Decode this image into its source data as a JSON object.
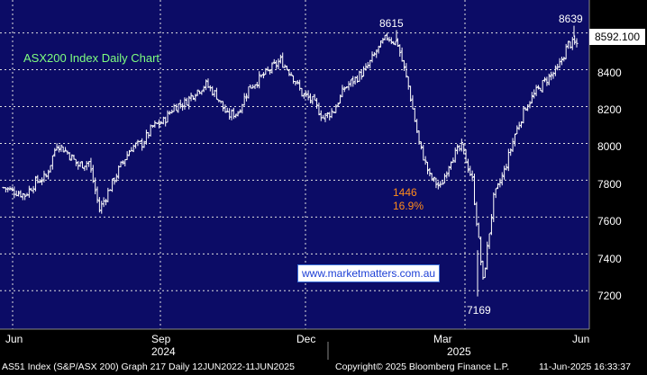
{
  "colors": {
    "plot_background": "#0c0c66",
    "grid": "#e0e0e0",
    "candles": "#ffffff",
    "title_green": "#7fff7f",
    "annotation_orange": "#ff8c1a",
    "url_blue": "#1c3fd6"
  },
  "chart_data": {
    "type": "candlestick",
    "title": "ASX200 Index Daily Chart",
    "ylim": [
      7050,
      8720
    ],
    "y_ticks": [
      "7200",
      "7400",
      "7600",
      "7800",
      "8000",
      "8200",
      "8400"
    ],
    "x_tick_labels": [
      "Jun",
      "Sep",
      "Dec",
      "Mar",
      "Jun"
    ],
    "x_year_labels": [
      "2024",
      "2025"
    ],
    "grid": true,
    "last_price": "8592.100",
    "annotations": {
      "high_1": "8615",
      "high_2": "8639",
      "low": "7169",
      "drop_points": "1446",
      "drop_pct": "16.9%"
    },
    "watermark_url": "www.marketmatters.com.au",
    "x": [
      "2024-06-03",
      "2024-06-10",
      "2024-06-17",
      "2024-06-24",
      "2024-07-01",
      "2024-07-08",
      "2024-07-15",
      "2024-07-22",
      "2024-07-29",
      "2024-08-05",
      "2024-08-12",
      "2024-08-19",
      "2024-08-26",
      "2024-09-02",
      "2024-09-09",
      "2024-09-16",
      "2024-09-23",
      "2024-09-30",
      "2024-10-07",
      "2024-10-14",
      "2024-10-21",
      "2024-10-28",
      "2024-11-04",
      "2024-11-11",
      "2024-11-18",
      "2024-11-25",
      "2024-12-02",
      "2024-12-09",
      "2024-12-16",
      "2024-12-23",
      "2024-12-30",
      "2025-01-06",
      "2025-01-13",
      "2025-01-20",
      "2025-01-27",
      "2025-02-03",
      "2025-02-10",
      "2025-02-17",
      "2025-02-24",
      "2025-03-03",
      "2025-03-10",
      "2025-03-17",
      "2025-03-24",
      "2025-03-31",
      "2025-04-07",
      "2025-04-14",
      "2025-04-21",
      "2025-04-28",
      "2025-05-05",
      "2025-05-12",
      "2025-05-19",
      "2025-05-26",
      "2025-06-02",
      "2025-06-09"
    ],
    "series": [
      {
        "values": [
          7760,
          7740,
          7720,
          7790,
          7820,
          8000,
          7950,
          7880,
          7900,
          7640,
          7760,
          7880,
          7980,
          8000,
          8090,
          8120,
          8200,
          8220,
          8280,
          8320,
          8260,
          8150,
          8170,
          8300,
          8350,
          8400,
          8450,
          8380,
          8270,
          8230,
          8140,
          8180,
          8300,
          8350,
          8400,
          8500,
          8580,
          8540,
          8310,
          8000,
          7820,
          7760,
          7920,
          7980,
          7800,
          7250,
          7700,
          7850,
          8050,
          8200,
          8280,
          8350,
          8400,
          8540
        ]
      }
    ]
  },
  "footer": {
    "ticker": "AS51 Index (S&P/ASX 200) Graph 217  Daily 12JUN2022-11JUN2025",
    "copyright": "Copyright© 2025 Bloomberg Finance L.P.",
    "timestamp": "11-Jun-2025 16:33:37"
  }
}
